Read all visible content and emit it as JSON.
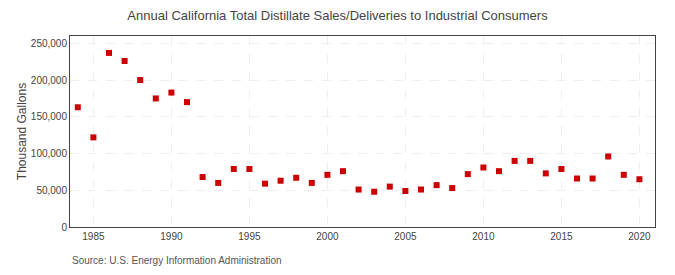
{
  "chart_data": {
    "type": "scatter",
    "title": "Annual California Total Distillate Sales/Deliveries to Industrial Consumers",
    "ylabel": "Thousand Gallons",
    "annotations": [
      "Source: U.S. Energy Information Administration"
    ],
    "x": [
      1984,
      1985,
      1986,
      1987,
      1988,
      1989,
      1990,
      1991,
      1992,
      1993,
      1994,
      1995,
      1996,
      1997,
      1998,
      1999,
      2000,
      2001,
      2002,
      2003,
      2004,
      2005,
      2006,
      2007,
      2008,
      2009,
      2010,
      2011,
      2012,
      2013,
      2014,
      2015,
      2016,
      2017,
      2018,
      2019,
      2020
    ],
    "values": [
      163000,
      122000,
      237000,
      226000,
      200000,
      175000,
      183000,
      170000,
      68000,
      60000,
      79000,
      79000,
      59000,
      63000,
      67000,
      60000,
      71000,
      76000,
      51000,
      48000,
      55000,
      49000,
      51000,
      57000,
      53000,
      72000,
      81000,
      76000,
      90000,
      90000,
      73000,
      79000,
      66000,
      66000,
      96000,
      71000,
      65000
    ],
    "color": "#cc0000",
    "marker": "square",
    "xlim": [
      1983.5,
      2021
    ],
    "xticks": [
      1985,
      1990,
      1995,
      2000,
      2005,
      2010,
      2015,
      2020
    ],
    "ylim": [
      0,
      260000
    ],
    "yticks": [
      0,
      {
        "value": 50000,
        "label": "50,000"
      },
      {
        "value": 100000,
        "label": "100,000"
      },
      {
        "value": 150000,
        "label": "150,000"
      },
      {
        "value": 200000,
        "label": "200,000"
      },
      {
        "value": 250000,
        "label": "250,000"
      }
    ],
    "grid": true
  }
}
